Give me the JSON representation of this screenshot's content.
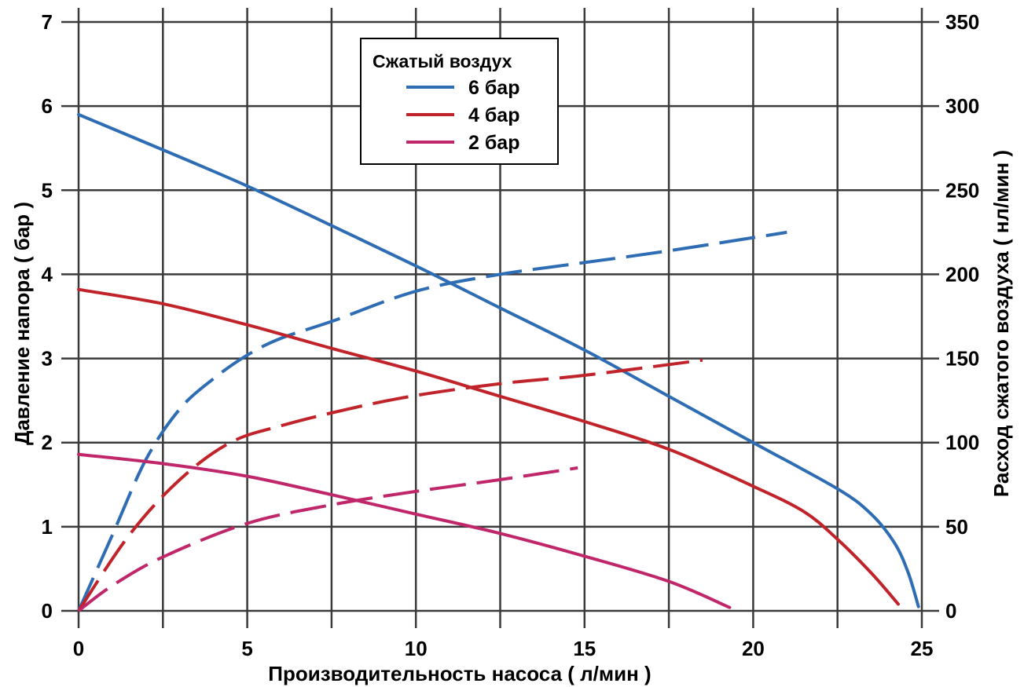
{
  "chart_data": {
    "type": "line",
    "xlabel": "Производительность насоса ( л/мин )",
    "ylabel": "Давление напора ( бар )",
    "y2label": "Расход сжатого воздуха ( нл/мин )",
    "xlim": [
      0,
      25
    ],
    "ylim": [
      0,
      7
    ],
    "y2lim": [
      0,
      350
    ],
    "x_ticks": [
      "0",
      "5",
      "10",
      "15",
      "20",
      "25"
    ],
    "y_ticks": [
      "0",
      "1",
      "2",
      "3",
      "4",
      "5",
      "6",
      "7"
    ],
    "y2_ticks": [
      "0",
      "50",
      "100",
      "150",
      "200",
      "250",
      "300",
      "350"
    ],
    "grid": true,
    "legend": {
      "title": "Сжатый воздух",
      "placement": "top-center"
    },
    "series": [
      {
        "name": "6 бар",
        "color": "#2e6db4",
        "pressure": [
          [
            0,
            5.9
          ],
          [
            2.5,
            5.48
          ],
          [
            5,
            5.05
          ],
          [
            7.5,
            4.58
          ],
          [
            10,
            4.1
          ],
          [
            12.5,
            3.6
          ],
          [
            15,
            3.1
          ],
          [
            17.5,
            2.55
          ],
          [
            20,
            2.0
          ],
          [
            22.5,
            1.45
          ],
          [
            23.5,
            1.15
          ],
          [
            24.2,
            0.8
          ],
          [
            24.6,
            0.45
          ],
          [
            24.9,
            0.05
          ]
        ],
        "air_flow": [
          [
            0,
            0
          ],
          [
            1,
            45
          ],
          [
            2,
            90
          ],
          [
            3,
            120
          ],
          [
            4,
            138
          ],
          [
            5,
            152
          ],
          [
            6,
            162
          ],
          [
            7.5,
            172
          ],
          [
            10,
            190
          ],
          [
            12.5,
            200
          ],
          [
            15,
            207
          ],
          [
            17.5,
            214
          ],
          [
            21,
            225
          ]
        ]
      },
      {
        "name": "4 бар",
        "color": "#c0242a",
        "pressure": [
          [
            0,
            3.82
          ],
          [
            2.5,
            3.65
          ],
          [
            5,
            3.4
          ],
          [
            7.5,
            3.12
          ],
          [
            10,
            2.85
          ],
          [
            12.5,
            2.55
          ],
          [
            15,
            2.25
          ],
          [
            17.5,
            1.92
          ],
          [
            20,
            1.48
          ],
          [
            21.5,
            1.18
          ],
          [
            22.5,
            0.85
          ],
          [
            23.5,
            0.45
          ],
          [
            24.3,
            0.08
          ]
        ],
        "air_flow": [
          [
            0,
            0
          ],
          [
            1.5,
            45
          ],
          [
            3,
            78
          ],
          [
            4.5,
            100
          ],
          [
            6,
            110
          ],
          [
            8,
            120
          ],
          [
            10,
            128
          ],
          [
            12.5,
            135
          ],
          [
            15,
            140
          ],
          [
            18.5,
            149
          ]
        ]
      },
      {
        "name": "2 бар",
        "color": "#c0266a",
        "pressure": [
          [
            0,
            1.86
          ],
          [
            2.5,
            1.75
          ],
          [
            5,
            1.6
          ],
          [
            7.5,
            1.38
          ],
          [
            10,
            1.15
          ],
          [
            12.5,
            0.92
          ],
          [
            15,
            0.65
          ],
          [
            17.5,
            0.35
          ],
          [
            19.3,
            0.04
          ]
        ],
        "air_flow": [
          [
            0,
            0
          ],
          [
            1,
            15
          ],
          [
            2.5,
            32
          ],
          [
            5,
            52
          ],
          [
            7.5,
            63
          ],
          [
            10,
            71
          ],
          [
            12.5,
            78
          ],
          [
            14.8,
            85
          ]
        ]
      }
    ]
  }
}
